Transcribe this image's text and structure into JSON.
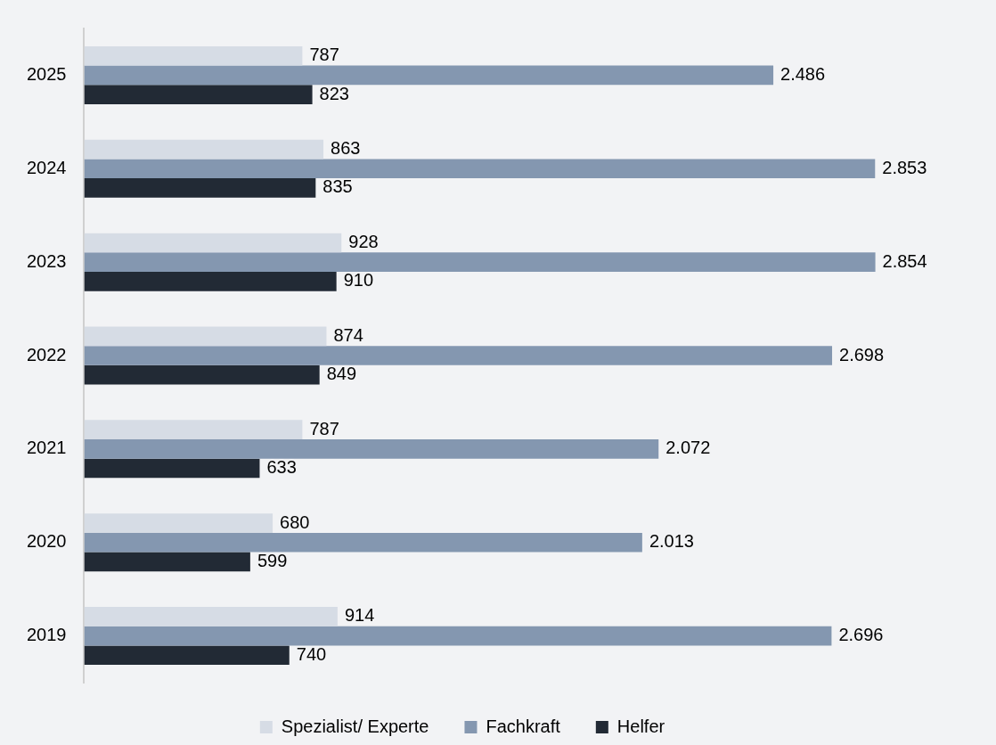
{
  "chart_data": {
    "type": "bar",
    "orientation": "horizontal",
    "categories": [
      "2025",
      "2024",
      "2023",
      "2022",
      "2021",
      "2020",
      "2019"
    ],
    "series": [
      {
        "name": "Spezialist/ Experte",
        "color": "#d6dce5",
        "values": [
          787,
          863,
          928,
          874,
          787,
          680,
          914
        ],
        "value_labels": [
          "787",
          "863",
          "928",
          "874",
          "787",
          "680",
          "914"
        ]
      },
      {
        "name": "Fachkraft",
        "color": "#8497b0",
        "values": [
          2486,
          2853,
          2854,
          2698,
          2072,
          2013,
          2696
        ],
        "value_labels": [
          "2.486",
          "2.853",
          "2.854",
          "2.698",
          "2.072",
          "2.013",
          "2.696"
        ]
      },
      {
        "name": "Helfer",
        "color": "#222a35",
        "values": [
          823,
          835,
          910,
          849,
          633,
          599,
          740
        ],
        "value_labels": [
          "823",
          "835",
          "910",
          "849",
          "633",
          "599",
          "740"
        ]
      }
    ],
    "legend": "bottom"
  }
}
